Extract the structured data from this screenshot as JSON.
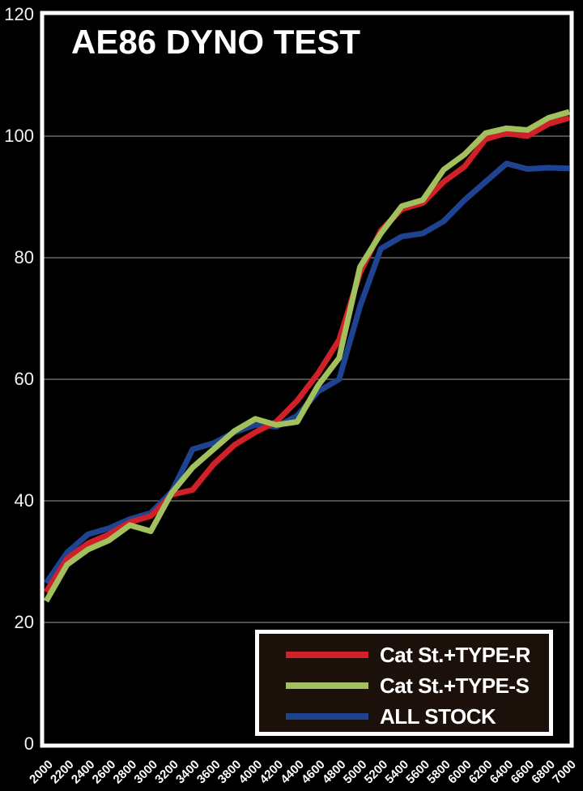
{
  "title": "AE86 DYNO TEST",
  "colors": {
    "background": "#000000",
    "plot_border": "#ffffff",
    "grid": "#4e4e4e",
    "axis_text": "#f2f2f2",
    "legend_bg": "#1c100b",
    "series_red": "#cf2127",
    "series_green": "#a2c05e",
    "series_blue": "#1f4390"
  },
  "legend": {
    "entries": [
      {
        "label": "Cat St.+TYPE-R",
        "color": "#cf2127"
      },
      {
        "label": "Cat St.+TYPE-S",
        "color": "#a2c05e"
      },
      {
        "label": "ALL STOCK",
        "color": "#1f4390"
      }
    ]
  },
  "chart_data": {
    "type": "line",
    "title": "AE86 DYNO TEST",
    "xlabel": "",
    "ylabel": "",
    "x": [
      2000,
      2200,
      2400,
      2600,
      2800,
      3000,
      3200,
      3400,
      3600,
      3800,
      4000,
      4200,
      4400,
      4600,
      4800,
      5000,
      5200,
      5400,
      5600,
      5800,
      6000,
      6200,
      6400,
      6600,
      6800,
      7000
    ],
    "series": [
      {
        "name": "ALL STOCK",
        "color": "#1f4390",
        "values": [
          26.5,
          31.5,
          34.5,
          35.5,
          37,
          38,
          41.5,
          48.5,
          49.5,
          51.3,
          52.5,
          52.2,
          54,
          58,
          60,
          72,
          81.5,
          83.5,
          84,
          86,
          89.5,
          92.5,
          95.5,
          94.6,
          94.8,
          94.7
        ]
      },
      {
        "name": "Cat St.+TYPE-R",
        "color": "#cf2127",
        "values": [
          25,
          30.5,
          33,
          34.5,
          36.5,
          37.5,
          41,
          41.8,
          46,
          49.2,
          51.3,
          53,
          56.5,
          61,
          66.5,
          77.5,
          84.5,
          88,
          89,
          92.5,
          95,
          99.5,
          100.5,
          100,
          102,
          103
        ]
      },
      {
        "name": "Cat St.+TYPE-S",
        "color": "#a2c05e",
        "values": [
          23.5,
          29.5,
          32,
          33.5,
          36,
          35,
          41.3,
          45.5,
          48.5,
          51.5,
          53.5,
          52.5,
          53,
          59,
          63.5,
          78.5,
          84,
          88.5,
          89.5,
          94.5,
          97,
          100.5,
          101.3,
          101,
          103,
          104
        ]
      }
    ],
    "ylim": [
      0,
      120
    ],
    "yticks": [
      0,
      20,
      40,
      60,
      80,
      100,
      120
    ],
    "grid": true,
    "legend_position": "bottom-right"
  }
}
